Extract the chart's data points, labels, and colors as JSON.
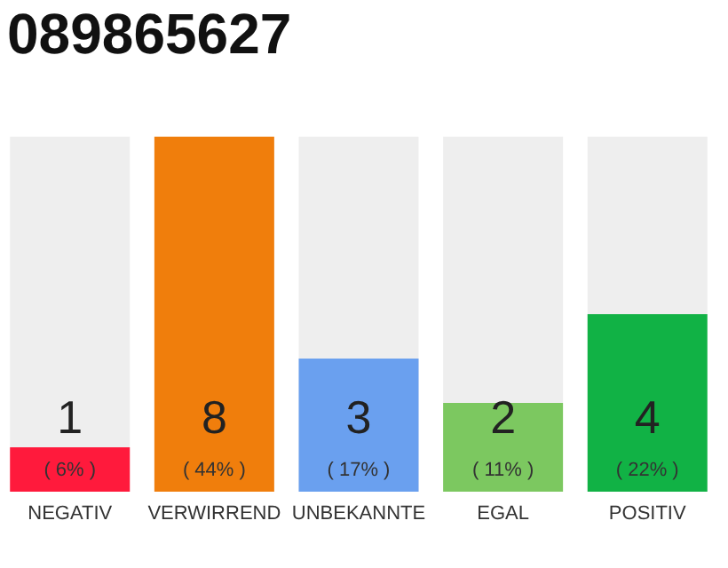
{
  "chart_data": {
    "type": "bar",
    "title": "089865627",
    "categories": [
      "NEGATIV",
      "VERWIRREND",
      "UNBEKANNTE",
      "EGAL",
      "POSITIV"
    ],
    "values": [
      1,
      8,
      3,
      2,
      4
    ],
    "colors": [
      "#ff1a3c",
      "#f07e0c",
      "#6aa0ef",
      "#7cc860",
      "#11b245"
    ],
    "ylim": [
      0,
      8
    ],
    "tick_labels": "x",
    "grid": false,
    "data_labels": true,
    "annotations": [
      "( 6% )",
      "( 44% )",
      "( 17% )",
      "( 11% )",
      "( 22% )"
    ]
  }
}
